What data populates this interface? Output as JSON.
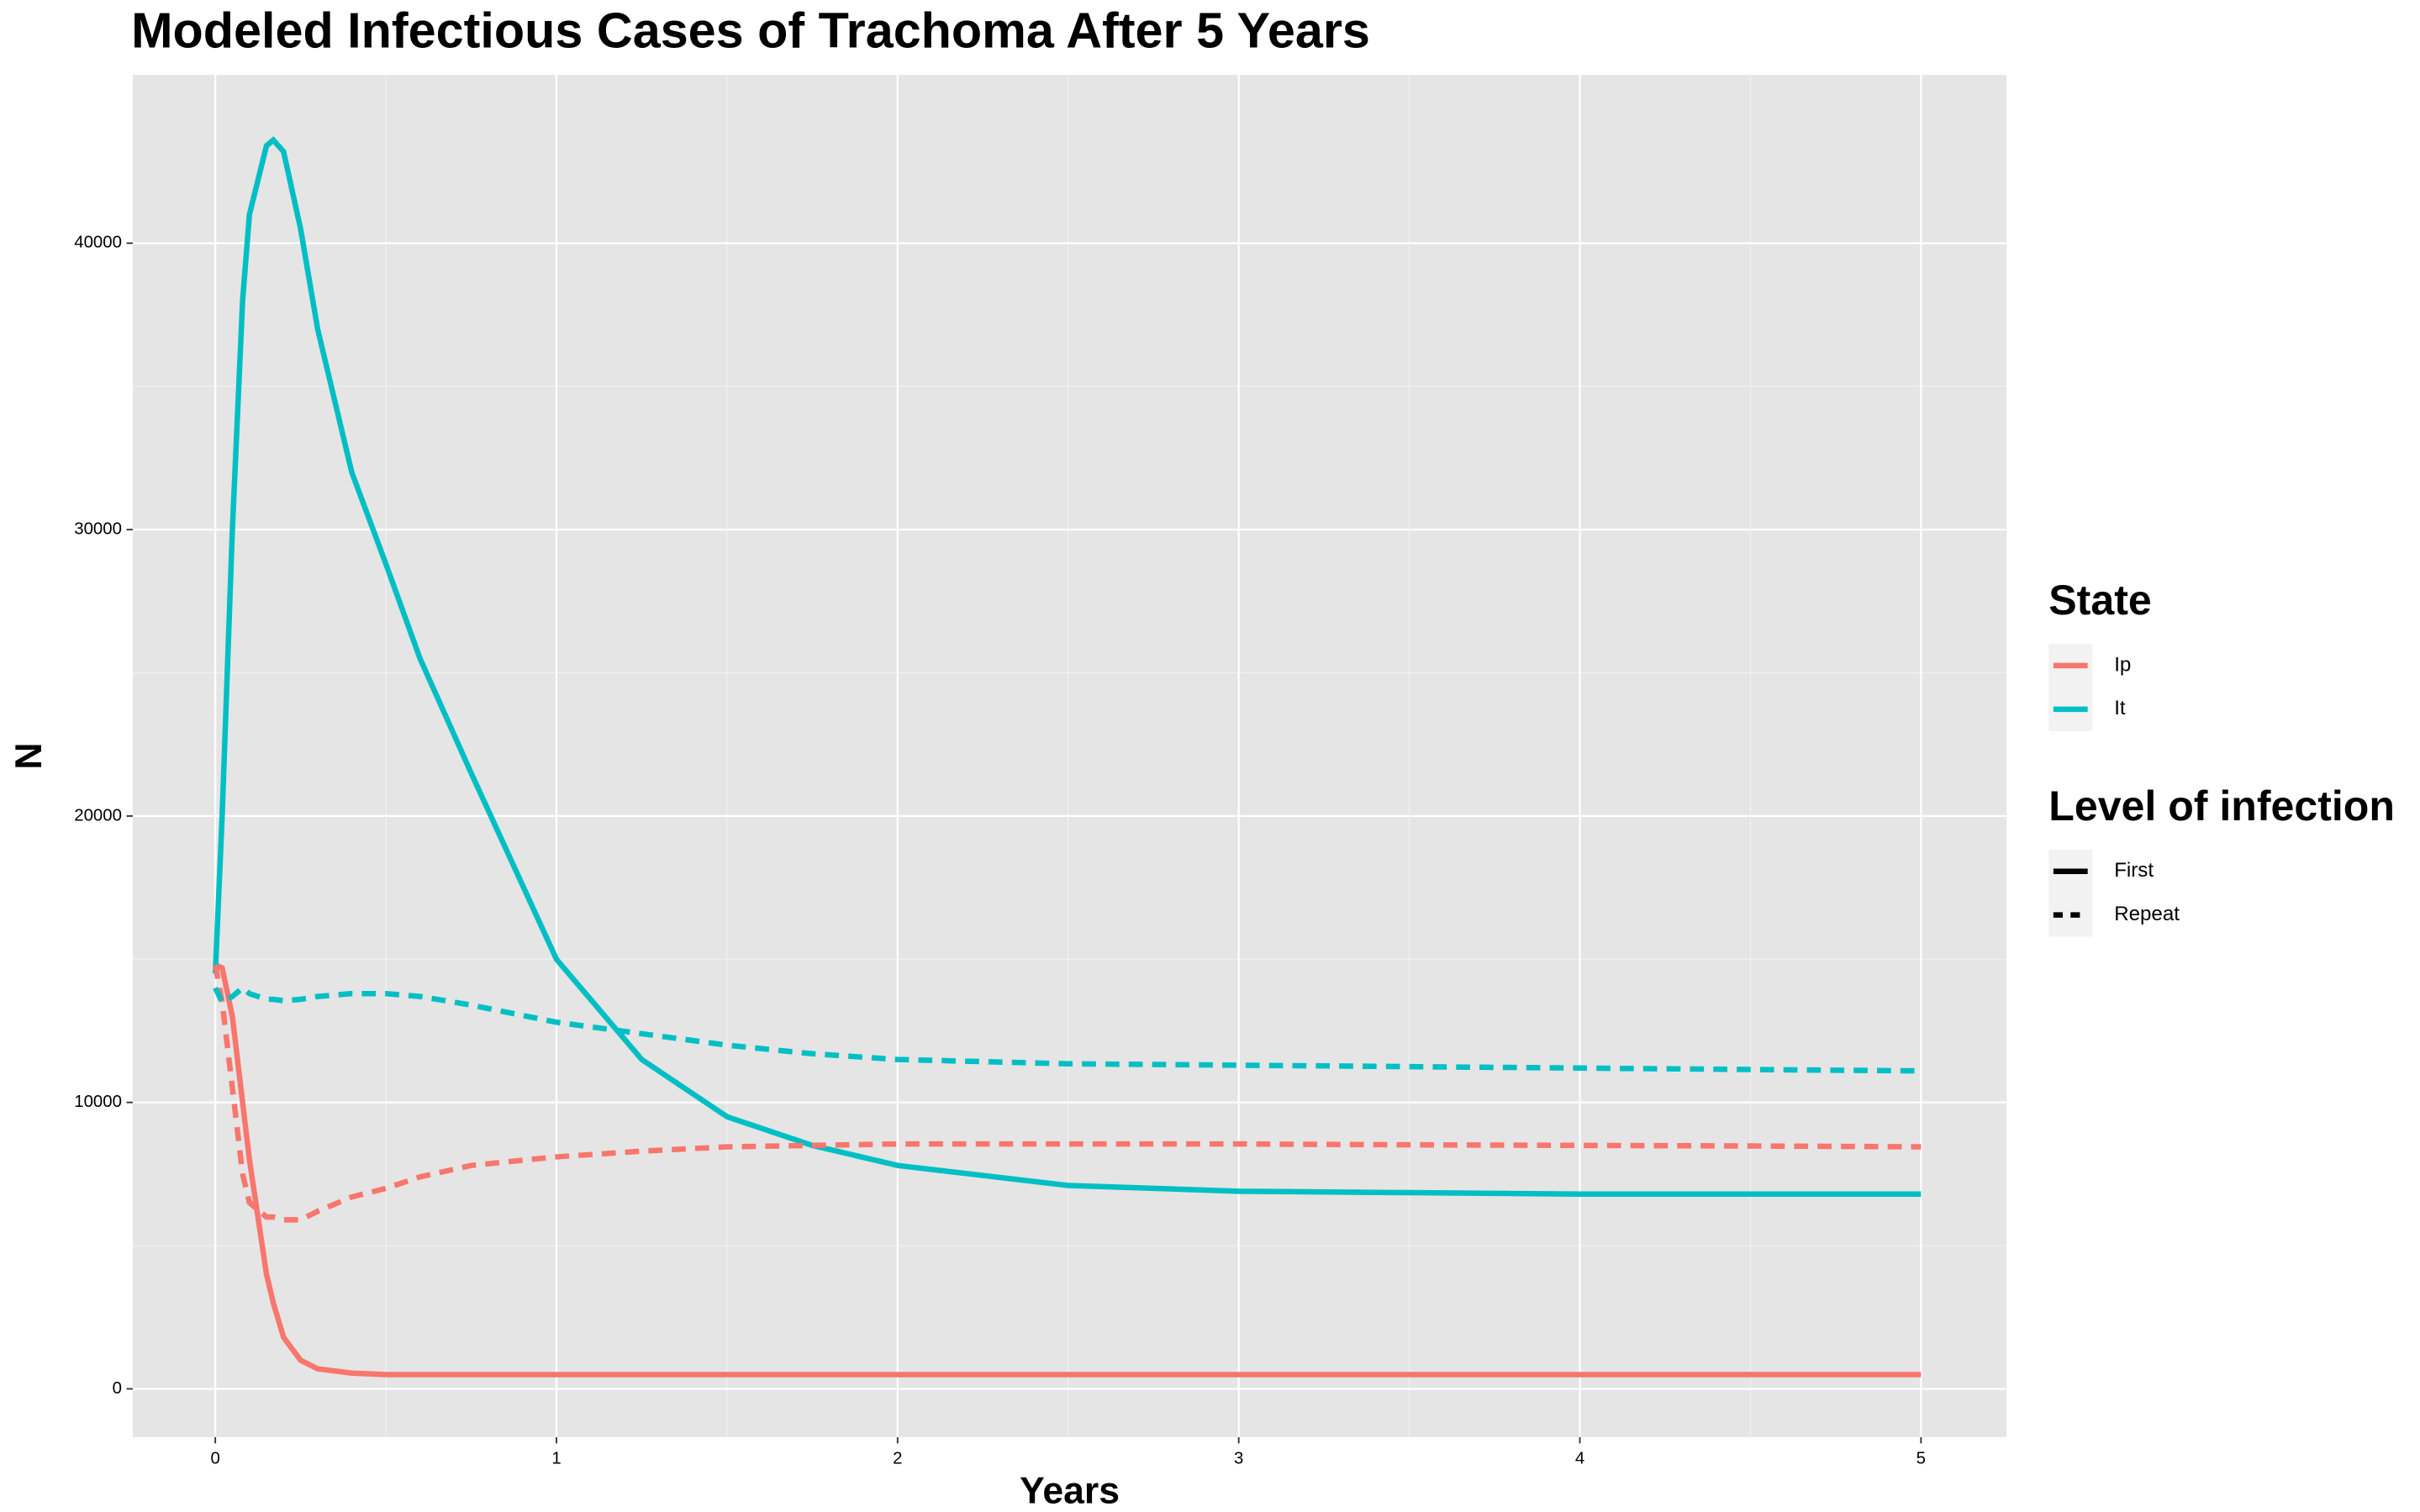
{
  "chart_data": {
    "type": "line",
    "title": "Modeled Infectious Cases of Trachoma After 5 Years",
    "x_label": "Years",
    "y_label": "N",
    "xlim": [
      -0.242,
      5.251
    ],
    "ylim": [
      -1687,
      45878
    ],
    "xticks": [
      0,
      1,
      2,
      3,
      4,
      5
    ],
    "yticks": [
      0,
      10000,
      20000,
      30000,
      40000
    ],
    "grid": true,
    "x": [
      0,
      0.02,
      0.05,
      0.08,
      0.1,
      0.15,
      0.17,
      0.2,
      0.25,
      0.3,
      0.4,
      0.5,
      0.6,
      0.75,
      1,
      1.25,
      1.5,
      1.75,
      2,
      2.5,
      3,
      3.5,
      4,
      4.5,
      5
    ],
    "series": [
      {
        "state": "Ip",
        "level": "First",
        "color": "#F8766D",
        "dashed": false,
        "values": [
          14800,
          14700,
          13000,
          10000,
          8000,
          4000,
          3000,
          1800,
          1000,
          700,
          550,
          500,
          500,
          500,
          500,
          500,
          500,
          500,
          500,
          500,
          500,
          500,
          500,
          500,
          500
        ]
      },
      {
        "state": "It",
        "level": "First",
        "color": "#00BFC4",
        "dashed": false,
        "values": [
          14500,
          20000,
          30000,
          38000,
          41000,
          43400,
          43600,
          43200,
          40500,
          37000,
          32000,
          28800,
          25500,
          21500,
          15000,
          11500,
          9500,
          8500,
          7800,
          7100,
          6900,
          6850,
          6800,
          6800,
          6800
        ]
      },
      {
        "state": "Ip",
        "level": "Repeat",
        "color": "#F8766D",
        "dashed": true,
        "values": [
          14800,
          13500,
          10500,
          7500,
          6500,
          6000,
          6000,
          5900,
          5900,
          6200,
          6700,
          7000,
          7400,
          7800,
          8100,
          8300,
          8450,
          8500,
          8550,
          8550,
          8550,
          8520,
          8500,
          8480,
          8450
        ]
      },
      {
        "state": "It",
        "level": "Repeat",
        "color": "#00BFC4",
        "dashed": true,
        "values": [
          14000,
          13500,
          13700,
          14000,
          13800,
          13600,
          13600,
          13550,
          13600,
          13700,
          13800,
          13800,
          13700,
          13400,
          12800,
          12400,
          12000,
          11700,
          11500,
          11350,
          11300,
          11250,
          11200,
          11150,
          11100
        ]
      }
    ],
    "legends": [
      {
        "title": "State",
        "entries": [
          {
            "label": "Ip",
            "color": "#F8766D"
          },
          {
            "label": "It",
            "color": "#00BFC4"
          }
        ]
      },
      {
        "title": "Level of infection",
        "entries": [
          {
            "label": "First",
            "dashed": false
          },
          {
            "label": "Repeat",
            "dashed": true
          }
        ]
      }
    ]
  }
}
